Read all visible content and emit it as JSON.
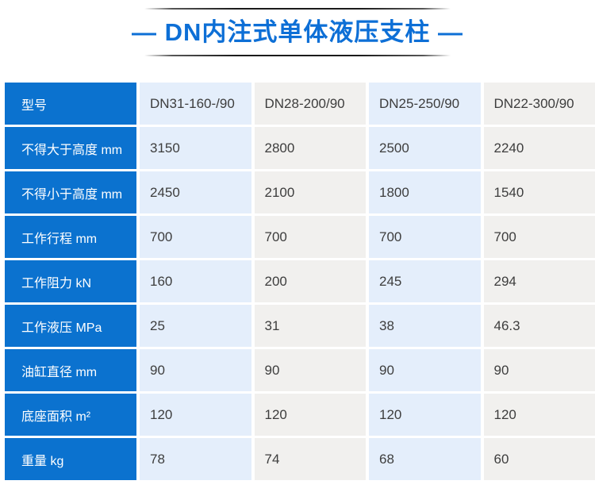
{
  "header": {
    "title": "— DN内注式单体液压支柱 —"
  },
  "colors": {
    "title_blue": "#0d6fd6",
    "row_header_blue": "#0b72cf",
    "column_light_blue": "#e4eefb",
    "column_light_gray": "#f1f0ee",
    "data_text": "#3d3d3d"
  },
  "chart_data": {
    "type": "table",
    "title": "DN内注式单体液压支柱",
    "header_row": {
      "label": "型号",
      "values": [
        "DN31-160-/90",
        "DN28-200/90",
        "DN25-250/90",
        "DN22-300/90"
      ]
    },
    "rows": [
      {
        "label": "不得大于高度 mm",
        "values": [
          "3150",
          "2800",
          "2500",
          "2240"
        ]
      },
      {
        "label": "不得小于高度 mm",
        "values": [
          "2450",
          "2100",
          "1800",
          "1540"
        ]
      },
      {
        "label": "工作行程 mm",
        "values": [
          "700",
          "700",
          "700",
          "700"
        ]
      },
      {
        "label": "工作阻力 kN",
        "values": [
          "160",
          "200",
          "245",
          "294"
        ]
      },
      {
        "label": "工作液压 MPa",
        "values": [
          "25",
          "31",
          "38",
          "46.3"
        ]
      },
      {
        "label": "油缸直径 mm",
        "values": [
          "90",
          "90",
          "90",
          "90"
        ]
      },
      {
        "label": "底座面积 m²",
        "values": [
          "120",
          "120",
          "120",
          "120"
        ]
      },
      {
        "label": "重量 kg",
        "values": [
          "78",
          "74",
          "68",
          "60"
        ]
      }
    ]
  }
}
